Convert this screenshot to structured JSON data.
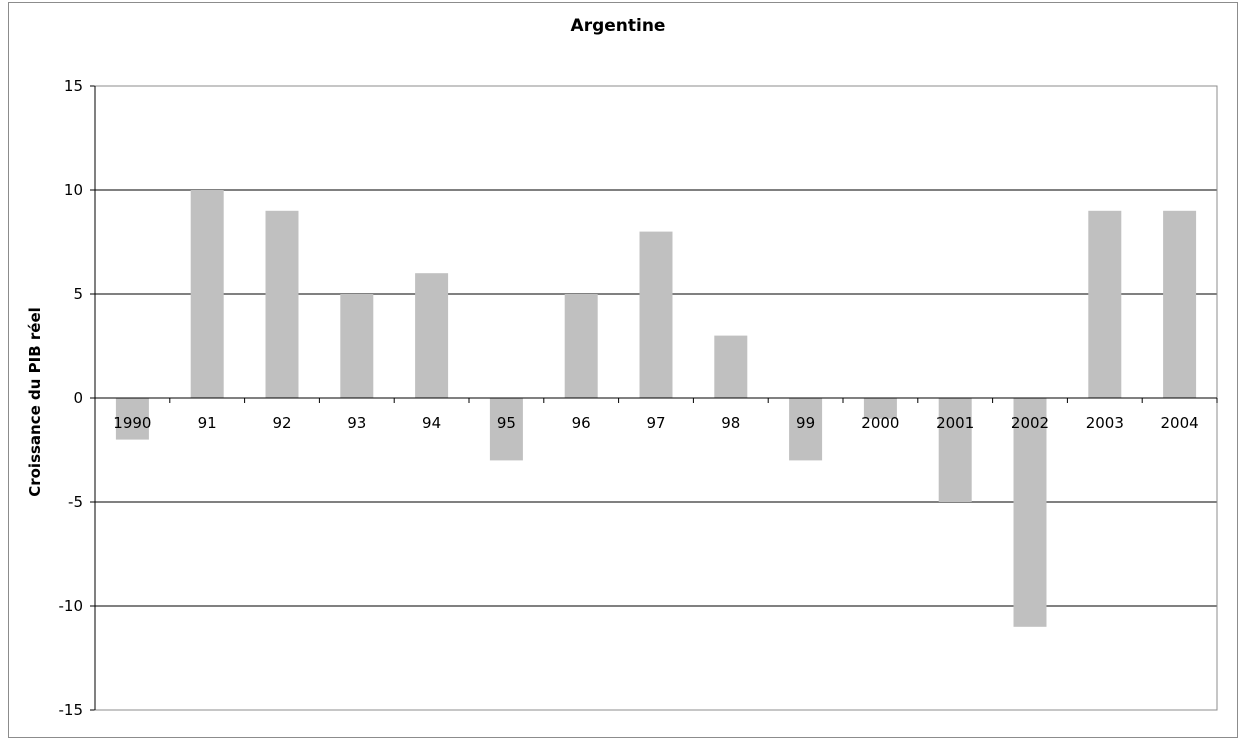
{
  "chart_data": {
    "type": "bar",
    "title": "Argentine",
    "ylabel": "Croissance du PIB réel",
    "xlabel": "",
    "categories": [
      "1990",
      "91",
      "92",
      "93",
      "94",
      "95",
      "96",
      "97",
      "98",
      "99",
      "2000",
      "2001",
      "2002",
      "2003",
      "2004"
    ],
    "values": [
      -2,
      10,
      9,
      5,
      6,
      -3,
      5,
      8,
      3,
      -3,
      -1,
      -5,
      -11,
      9,
      9
    ],
    "ylim": [
      -15,
      15
    ],
    "yticks": [
      -15,
      -10,
      -5,
      0,
      5,
      10,
      15
    ],
    "grid": true,
    "legend": "none",
    "bar_color": "#c0c0c0",
    "gridline_color": "#000000"
  }
}
